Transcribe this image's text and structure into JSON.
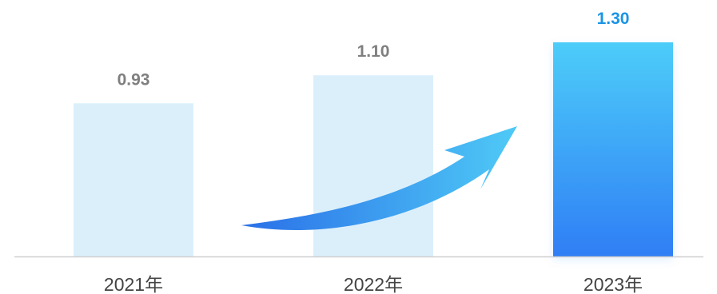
{
  "chart_data": {
    "type": "bar",
    "categories": [
      "2021年",
      "2022年",
      "2023年"
    ],
    "values": [
      0.93,
      1.1,
      1.3
    ],
    "value_labels": [
      "0.93",
      "1.10",
      "1.30"
    ],
    "title": "",
    "xlabel": "",
    "ylabel": "",
    "ylim": [
      0,
      1.4
    ],
    "grid": false,
    "legend": "none",
    "highlight_index": 2,
    "annotation": "upward-growth-arrow",
    "colors": {
      "bar_muted": "#dbeffb",
      "bar_highlight_top": "#4dcdf9",
      "bar_highlight_bottom": "#2f7ef5",
      "label_muted": "#7f7f7f",
      "label_highlight": "#1a94e6",
      "axis": "#cfcfcf",
      "arrow_start": "#2a6fe8",
      "arrow_end": "#4fcaf6"
    }
  }
}
